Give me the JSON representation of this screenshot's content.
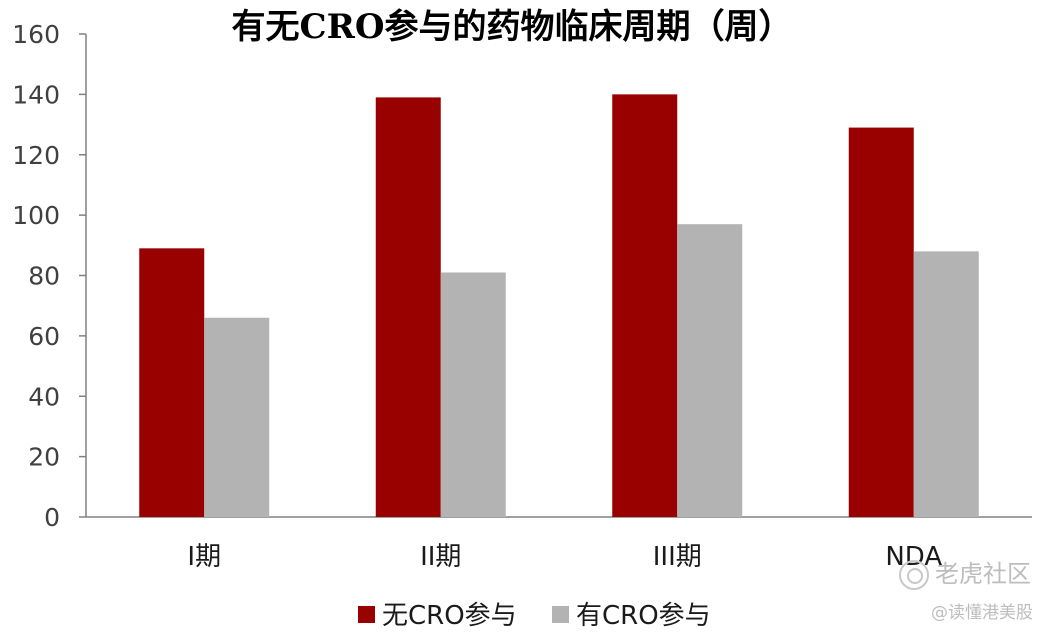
{
  "chart_data": {
    "type": "bar",
    "title": "有无CRO参与的药物临床周期（周）",
    "categories": [
      "I期",
      "II期",
      "III期",
      "NDA"
    ],
    "series": [
      {
        "name": "无CRO参与",
        "color": "#990000",
        "values": [
          89,
          139,
          140,
          129
        ]
      },
      {
        "name": "有CRO参与",
        "color": "#b3b3b3",
        "values": [
          66,
          81,
          97,
          88
        ]
      }
    ],
    "ylim": [
      0,
      160
    ],
    "yticks": [
      0,
      20,
      40,
      60,
      80,
      100,
      120,
      140,
      160
    ],
    "xlabel": "",
    "ylabel": "",
    "grid": false,
    "legend": "bottom"
  },
  "watermark": {
    "line1": "老虎社区",
    "line2": "@读懂港美股"
  }
}
